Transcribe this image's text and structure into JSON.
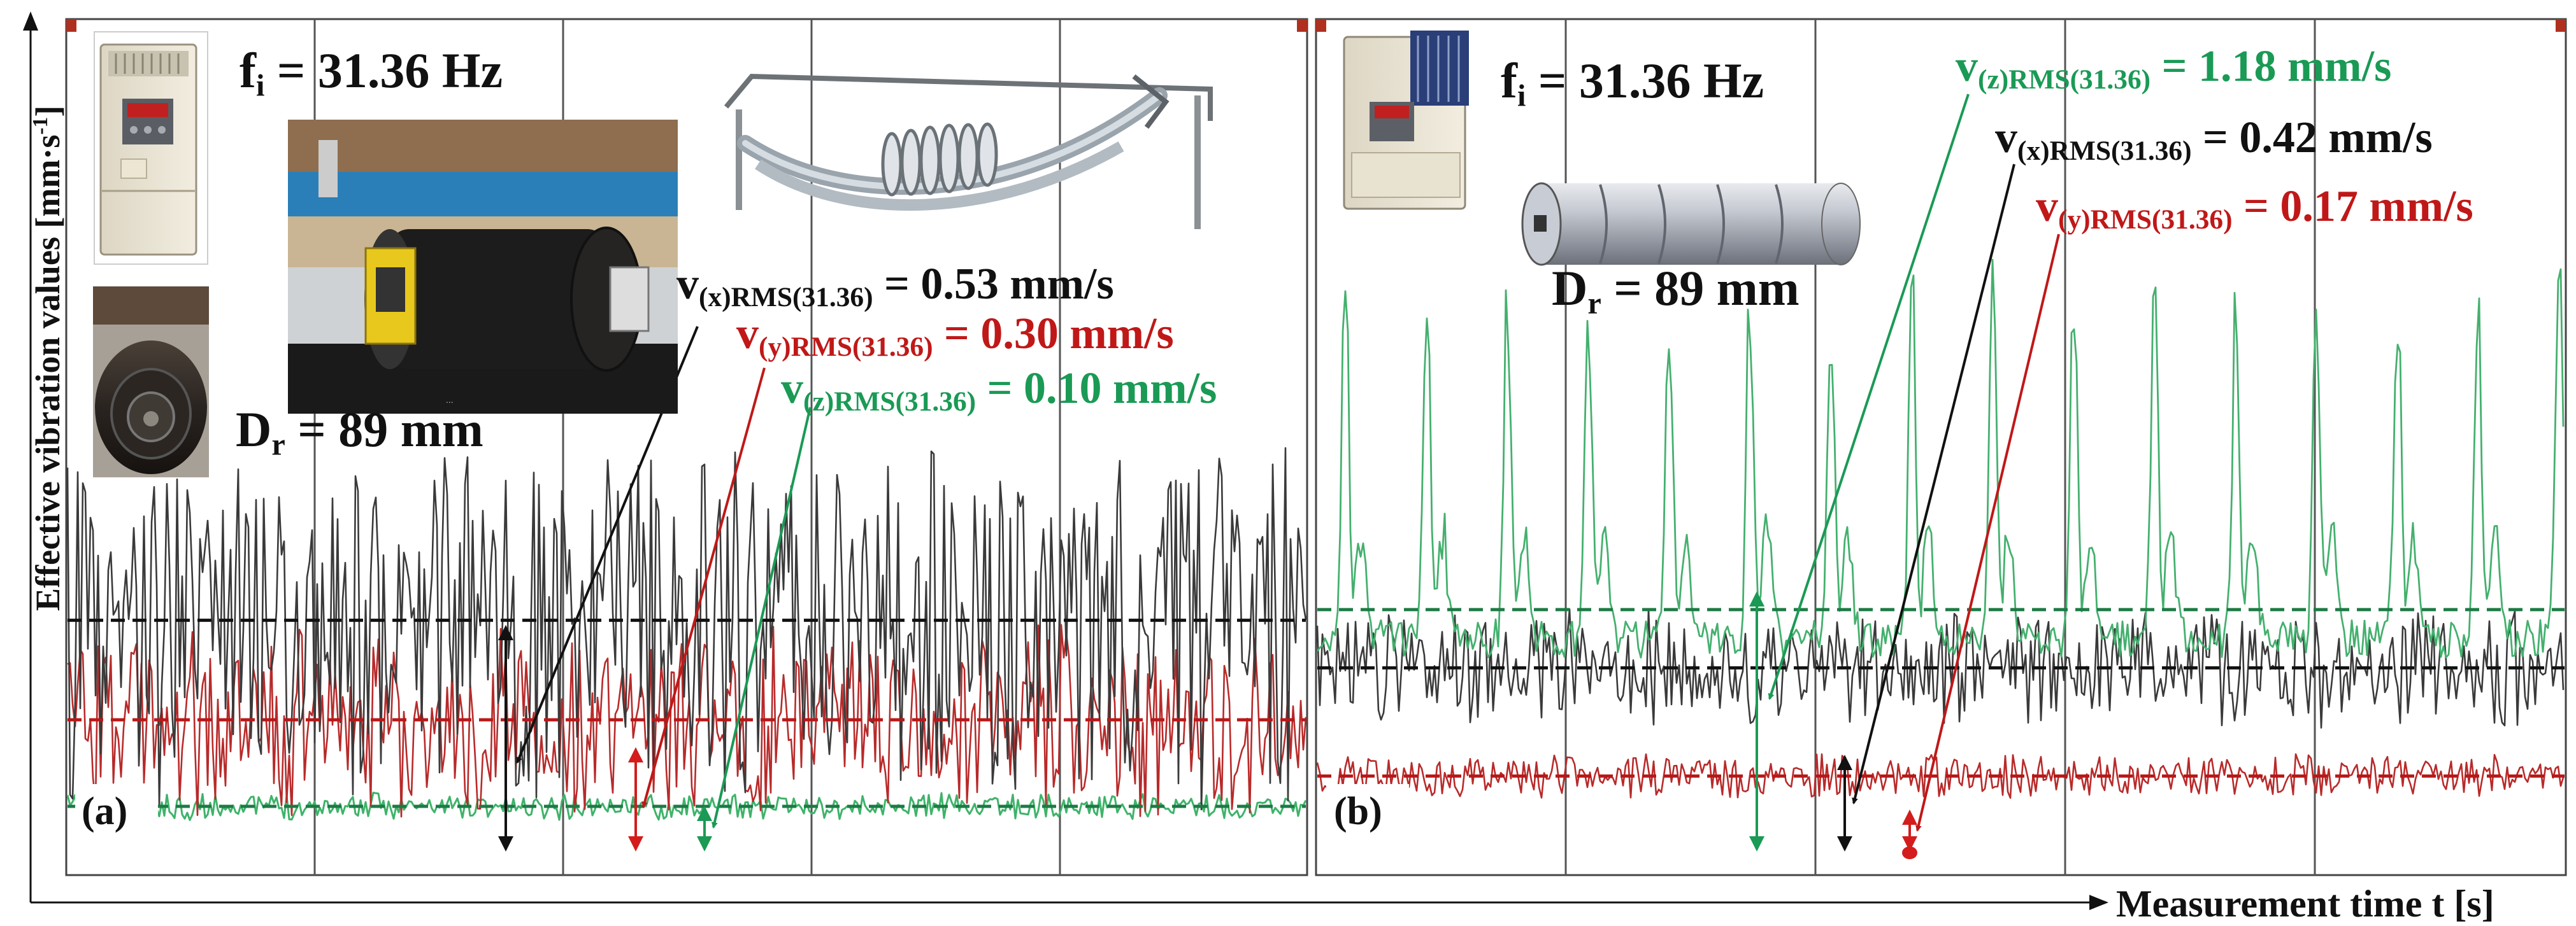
{
  "chart_data": [
    {
      "type": "line",
      "panel_label": "(a)",
      "xlabel": "",
      "ylabel": "Effective vibration values [mm·s-1]",
      "frequency_label": "fi = 31.36 Hz",
      "diameter_label": "Dr = 89 mm",
      "series": [
        {
          "name": "v(x)RMS(31.36)",
          "rms": 0.53,
          "unit": "mm/s",
          "color": "#1a1a1a"
        },
        {
          "name": "v(y)RMS(31.36)",
          "rms": 0.3,
          "unit": "mm/s",
          "color": "#b81818"
        },
        {
          "name": "v(z)RMS(31.36)",
          "rms": 0.1,
          "unit": "mm/s",
          "color": "#1a9a55"
        }
      ],
      "annotations": [
        {
          "var": "v",
          "sub": "(x)RMS(31.36)",
          "value": "= 0.53 mm/s",
          "color": "#1a1a1a"
        },
        {
          "var": "v",
          "sub": "(y)RMS(31.36)",
          "value": "= 0.30 mm/s",
          "color": "#c01818"
        },
        {
          "var": "v",
          "sub": "(z)RMS(31.36)",
          "value": "= 0.10 mm/s",
          "color": "#1a9a55"
        }
      ]
    },
    {
      "type": "line",
      "panel_label": "(b)",
      "xlabel": "Measurement time t [s]",
      "ylabel": "",
      "frequency_label": "fi = 31.36 Hz",
      "diameter_label": "Dr = 89 mm",
      "series": [
        {
          "name": "v(x)RMS(31.36)",
          "rms": 0.42,
          "unit": "mm/s",
          "color": "#1a1a1a"
        },
        {
          "name": "v(y)RMS(31.36)",
          "rms": 0.17,
          "unit": "mm/s",
          "color": "#b81818"
        },
        {
          "name": "v(z)RMS(31.36)",
          "rms": 1.18,
          "unit": "mm/s",
          "color": "#1a9a55"
        }
      ],
      "annotations": [
        {
          "var": "v",
          "sub": "(z)RMS(31.36)",
          "value": "= 1.18 mm/s",
          "color": "#1a9a55"
        },
        {
          "var": "v",
          "sub": "(x)RMS(31.36)",
          "value": "= 0.42 mm/s",
          "color": "#1a1a1a"
        },
        {
          "var": "v",
          "sub": "(y)RMS(31.36)",
          "value": "= 0.17 mm/s",
          "color": "#c01818"
        }
      ]
    }
  ],
  "labels": {
    "ylabel_main": "Effective vibration values [mm·s",
    "ylabel_exp": "-1",
    "ylabel_end": "]",
    "xlabel": "Measurement time t [s]",
    "f_var": "f",
    "f_sub": "i",
    "f_rest": " = 31.36 Hz",
    "d_var": "D",
    "d_sub": "r",
    "d_rest": " = 89 mm"
  },
  "icons": {
    "vfd_photo": "frequency-inverter-icon",
    "roller_photo": "roller-end-photo-icon",
    "test_rig_photo": "test-rig-photo-icon",
    "idler_drawing": "curved-idler-drawing-icon",
    "cylinder_drawing": "roller-cylinder-icon"
  }
}
